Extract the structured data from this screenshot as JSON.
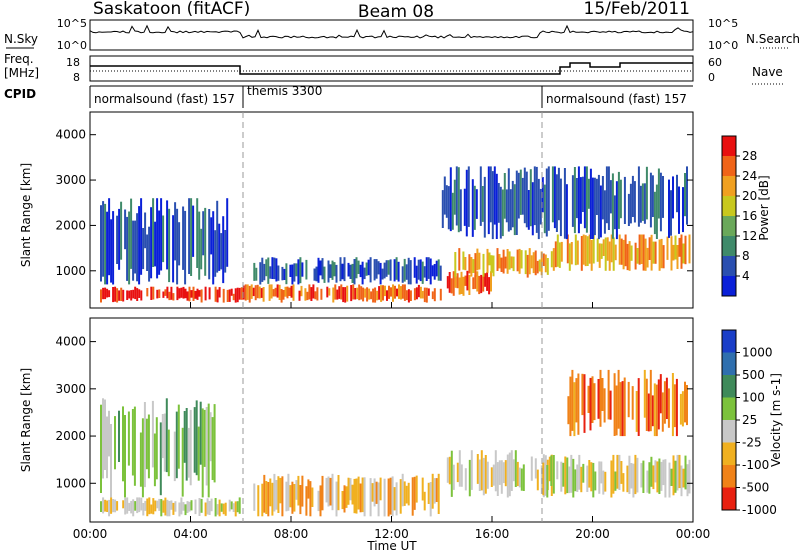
{
  "header": {
    "station": "Saskatoon (fitACF)",
    "beam": "Beam 08",
    "date": "15/Feb/2011"
  },
  "noise_panel": {
    "left_label": "N.Sky",
    "right_label": "N.Search",
    "tick_hi": "10^5",
    "tick_lo": "10^0"
  },
  "freq_panel": {
    "left_label_top": "Freq.",
    "left_label_bottom": "[MHz]",
    "left_tick_hi": "18",
    "left_tick_lo": "8",
    "right_label": "Nave",
    "right_tick_hi": "60",
    "right_tick_lo": "0"
  },
  "cpid": {
    "label": "CPID",
    "segments": [
      {
        "name": "normalsound (fast) 157",
        "start_h": 0,
        "end_h": 6
      },
      {
        "name": "themis 3300",
        "start_h": 6,
        "end_h": 18
      },
      {
        "name": "normalsound (fast) 157",
        "start_h": 18,
        "end_h": 24
      }
    ]
  },
  "power_panel": {
    "ylabel": "Slant Range [km]",
    "yticks": [
      "1000",
      "2000",
      "3000",
      "4000"
    ],
    "colorbar_label": "Power [dB]",
    "colorbar_ticks": [
      "4",
      "8",
      "12",
      "16",
      "20",
      "24",
      "28"
    ],
    "colors": [
      "#0a20d8",
      "#2a4fb0",
      "#3f8a6a",
      "#6aa85a",
      "#c8c81e",
      "#f0a020",
      "#f06418",
      "#e81010"
    ]
  },
  "velocity_panel": {
    "ylabel": "Slant Range [km]",
    "yticks": [
      "1000",
      "2000",
      "3000",
      "4000"
    ],
    "colorbar_label": "Velocity [m s-1]",
    "colorbar_ticks": [
      "1000",
      "500",
      "100",
      "25",
      "-25",
      "-100",
      "-500",
      "-1000"
    ],
    "colors": [
      "#1a3ec8",
      "#2f6fae",
      "#3f8a5a",
      "#7cc23c",
      "#c8c8c8",
      "#f0b020",
      "#f08218",
      "#e82010"
    ]
  },
  "time_axis": {
    "label": "Time UT",
    "ticks": [
      "00:00",
      "04:00",
      "08:00",
      "12:00",
      "16:00",
      "20:00",
      "00:00"
    ]
  },
  "chart_data": {
    "type": "heatmap",
    "x_range_hours": [
      0,
      24
    ],
    "y_range_km": [
      180,
      4500
    ],
    "vertical_markers_hours": [
      6,
      18
    ],
    "power_regions": [
      {
        "t0": 0.4,
        "t1": 6.0,
        "r0": 300,
        "r1": 650,
        "level": 7
      },
      {
        "t0": 6.0,
        "t1": 14.0,
        "r0": 300,
        "r1": 700,
        "level": 6
      },
      {
        "t0": 14.2,
        "t1": 16.0,
        "r0": 450,
        "r1": 1000,
        "level": 6
      },
      {
        "t0": 14.5,
        "t1": 18.5,
        "r0": 850,
        "r1": 1500,
        "level": 5
      },
      {
        "t0": 18.5,
        "t1": 23.9,
        "r0": 1000,
        "r1": 1800,
        "level": 5
      },
      {
        "t0": 0.4,
        "t1": 5.5,
        "r0": 700,
        "r1": 2600,
        "level": 1
      },
      {
        "t0": 14.0,
        "t1": 23.8,
        "r0": 1700,
        "r1": 3300,
        "level": 1
      },
      {
        "t0": 6.5,
        "t1": 14.0,
        "r0": 700,
        "r1": 1300,
        "level": 1
      }
    ],
    "velocity_regions": [
      {
        "t0": 0.4,
        "t1": 6.0,
        "r0": 300,
        "r1": 700,
        "level": 4
      },
      {
        "t0": 6.5,
        "t1": 14.0,
        "r0": 300,
        "r1": 1200,
        "level": 5
      },
      {
        "t0": 14.2,
        "t1": 18.5,
        "r0": 700,
        "r1": 1700,
        "level": 4
      },
      {
        "t0": 18.0,
        "t1": 23.9,
        "r0": 700,
        "r1": 1600,
        "level": 4
      },
      {
        "t0": 19.0,
        "t1": 23.8,
        "r0": 2000,
        "r1": 3400,
        "level": 6
      },
      {
        "t0": 0.4,
        "t1": 5.0,
        "r0": 700,
        "r1": 2800,
        "level": 3
      }
    ]
  }
}
